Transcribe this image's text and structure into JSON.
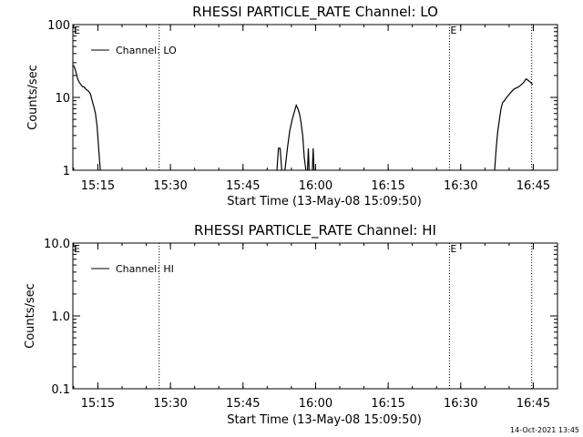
{
  "footer": {
    "timestamp": "14-Oct-2021 13:45"
  },
  "chart_data": [
    {
      "type": "line",
      "title": "RHESSI PARTICLE_RATE Channel: LO",
      "xlabel": "Start Time (13-May-08 15:09:50)",
      "ylabel": "Counts/sec",
      "yscale": "log",
      "ylim": [
        1,
        100
      ],
      "xlim": [
        "15:09:50",
        "16:50:00"
      ],
      "xticks": [
        "15:15",
        "15:30",
        "15:45",
        "16:00",
        "16:15",
        "16:30",
        "16:45"
      ],
      "yticks": [
        {
          "label": "1",
          "value": 1
        },
        {
          "label": "10",
          "value": 10
        },
        {
          "label": "100",
          "value": 100
        }
      ],
      "legend_position": "top-left",
      "grid": false,
      "markers": [
        {
          "label": "E",
          "x": "15:09:50"
        },
        {
          "label": "",
          "x": "15:27:40"
        },
        {
          "label": "E",
          "x": "16:27:40"
        },
        {
          "label": "",
          "x": "16:44:40"
        }
      ],
      "series": [
        {
          "name": "Channel: LO",
          "color": "#000000",
          "segments": [
            [
              [
                "15:09:50",
                28
              ],
              [
                "15:10:10",
                26
              ],
              [
                "15:10:30",
                22
              ],
              [
                "15:10:50",
                18
              ],
              [
                "15:11:10",
                16
              ],
              [
                "15:11:30",
                15
              ],
              [
                "15:11:50",
                14
              ],
              [
                "15:12:10",
                14
              ],
              [
                "15:12:30",
                13
              ],
              [
                "15:12:50",
                12.5
              ],
              [
                "15:13:10",
                12
              ],
              [
                "15:13:30",
                11
              ],
              [
                "15:13:50",
                9
              ],
              [
                "15:14:10",
                7.5
              ],
              [
                "15:14:30",
                6
              ],
              [
                "15:14:50",
                4
              ],
              [
                "15:15:10",
                2
              ],
              [
                "15:15:30",
                1
              ]
            ],
            [
              [
                "15:52:00",
                1
              ],
              [
                "15:52:20",
                2
              ],
              [
                "15:52:40",
                2
              ],
              [
                "15:53:00",
                1
              ]
            ],
            [
              [
                "15:53:40",
                1
              ],
              [
                "15:54:10",
                2
              ],
              [
                "15:54:40",
                3.5
              ],
              [
                "15:55:10",
                5
              ],
              [
                "15:55:40",
                6.5
              ],
              [
                "15:56:00",
                7.8
              ],
              [
                "15:56:20",
                7
              ],
              [
                "15:56:40",
                6
              ],
              [
                "15:57:00",
                4.5
              ],
              [
                "15:57:20",
                3
              ],
              [
                "15:57:40",
                1.5
              ],
              [
                "15:58:00",
                1
              ]
            ],
            [
              [
                "15:58:20",
                1
              ],
              [
                "15:58:30",
                2
              ],
              [
                "15:58:40",
                1
              ]
            ],
            [
              [
                "15:59:20",
                1
              ],
              [
                "15:59:30",
                2
              ],
              [
                "15:59:40",
                1
              ]
            ],
            [
              [
                "16:37:00",
                1
              ],
              [
                "16:37:20",
                2
              ],
              [
                "16:37:40",
                3.5
              ],
              [
                "16:38:00",
                5
              ],
              [
                "16:38:20",
                7
              ],
              [
                "16:38:40",
                8.5
              ],
              [
                "16:39:00",
                9
              ],
              [
                "16:39:30",
                10
              ],
              [
                "16:40:00",
                11
              ],
              [
                "16:40:30",
                12
              ],
              [
                "16:41:00",
                13
              ],
              [
                "16:41:30",
                13.5
              ],
              [
                "16:42:00",
                14
              ],
              [
                "16:42:30",
                15
              ],
              [
                "16:43:00",
                16
              ],
              [
                "16:43:30",
                18
              ],
              [
                "16:44:00",
                17
              ],
              [
                "16:44:30",
                16
              ],
              [
                "16:44:50",
                15
              ]
            ]
          ]
        }
      ]
    },
    {
      "type": "line",
      "title": "RHESSI PARTICLE_RATE Channel: HI",
      "xlabel": "Start Time (13-May-08 15:09:50)",
      "ylabel": "Counts/sec",
      "yscale": "log",
      "ylim": [
        0.1,
        10
      ],
      "xlim": [
        "15:09:50",
        "16:50:00"
      ],
      "xticks": [
        "15:15",
        "15:30",
        "15:45",
        "16:00",
        "16:15",
        "16:30",
        "16:45"
      ],
      "yticks": [
        {
          "label": "0.1",
          "value": 0.1
        },
        {
          "label": "1.0",
          "value": 1
        },
        {
          "label": "10.0",
          "value": 10
        }
      ],
      "legend_position": "top-left",
      "grid": false,
      "markers": [
        {
          "label": "E",
          "x": "15:09:50"
        },
        {
          "label": "",
          "x": "15:27:40"
        },
        {
          "label": "E",
          "x": "16:27:40"
        },
        {
          "label": "",
          "x": "16:44:40"
        }
      ],
      "series": [
        {
          "name": "Channel: HI",
          "color": "#000000",
          "segments": []
        }
      ]
    }
  ]
}
